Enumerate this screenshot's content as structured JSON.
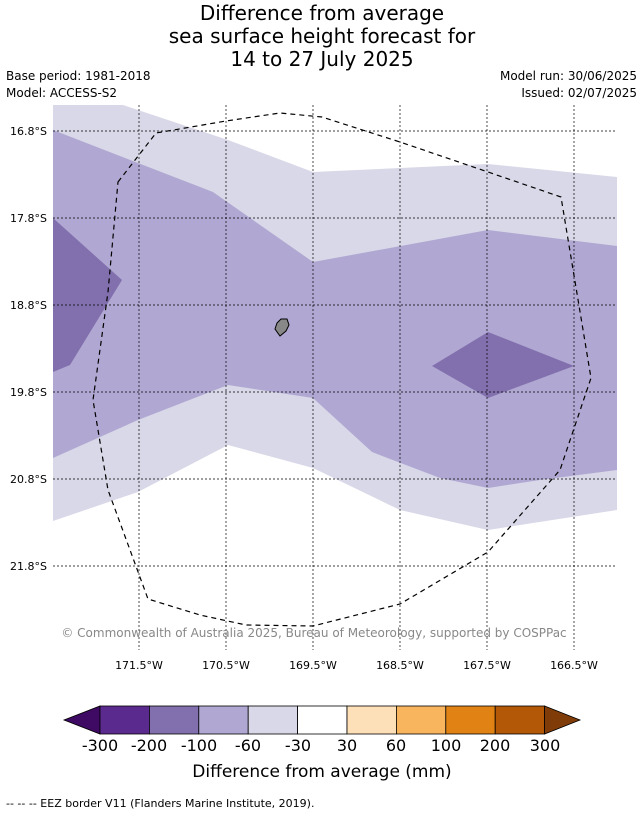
{
  "title_lines": [
    "Difference from average",
    "sea surface height forecast for",
    "14 to 27 July 2025"
  ],
  "base_period": "Base period: 1981-2018",
  "model": "Model: ACCESS-S2",
  "model_run": "Model run: 30/06/2025",
  "issued": "Issued: 02/07/2025",
  "copyright": "© Commonwealth of Australia 2025, Bureau of Meteorology, supported by COSPPac",
  "lat_labels": [
    "16.8°S",
    "17.8°S",
    "18.8°S",
    "19.8°S",
    "20.8°S",
    "21.8°S"
  ],
  "lon_labels": [
    "171.5°W",
    "170.5°W",
    "169.5°W",
    "168.5°W",
    "167.5°W",
    "166.5°W"
  ],
  "colorbar": {
    "tick_labels": [
      "-300",
      "-200",
      "-100",
      "-60",
      "-30",
      "30",
      "60",
      "100",
      "200",
      "300"
    ],
    "title": "Difference from average (mm)",
    "colors": [
      "#3f0a63",
      "#5a2a8e",
      "#8270ae",
      "#b0a8d2",
      "#d8d8e8",
      "#ffffff",
      "#fde0b8",
      "#f9b55e",
      "#e08214",
      "#b35806",
      "#7f3b08"
    ]
  },
  "footnote": "--  --  -- EEZ border V11 (Flanders Marine Institute, 2019).",
  "layer_colors": {
    "light": "#d8d8e8",
    "mid": "#b0a8d2",
    "dark": "#8270ae",
    "island": "#888888"
  }
}
